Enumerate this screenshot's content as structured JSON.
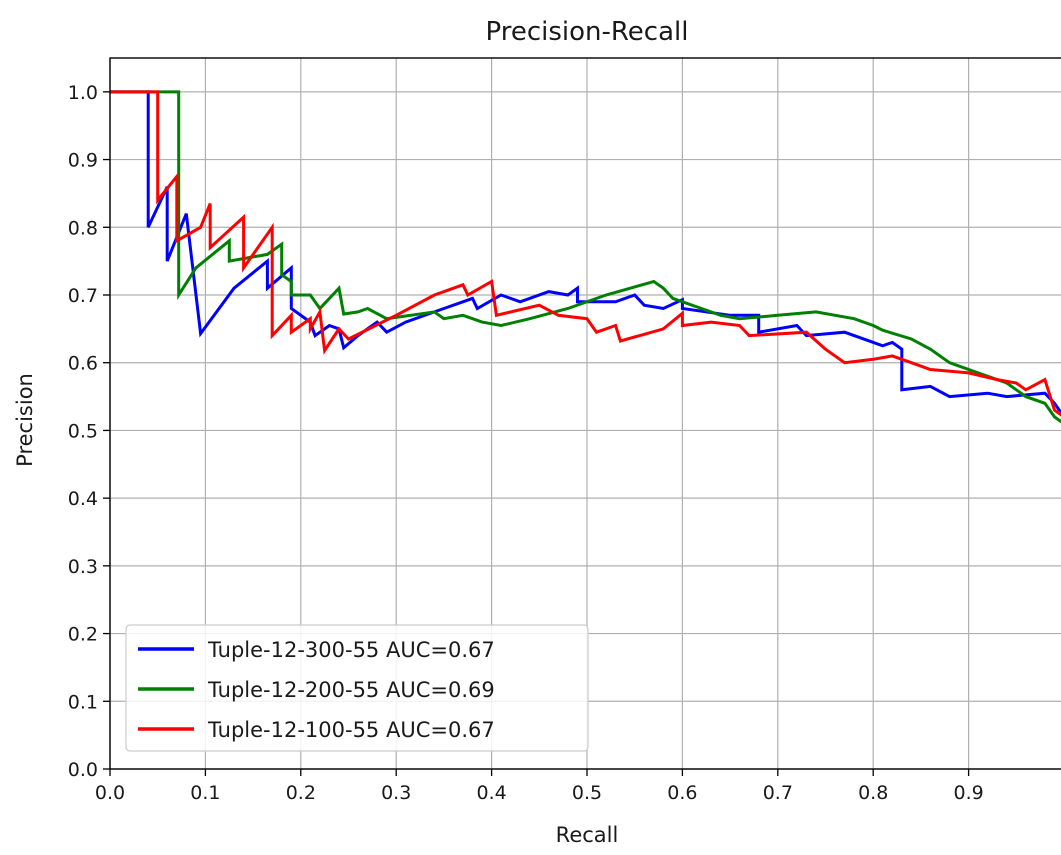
{
  "chart_data": {
    "type": "line",
    "title": "Precision-Recall",
    "xlabel": "Recall",
    "ylabel": "Precision",
    "xlim": [
      0.0,
      1.0
    ],
    "ylim": [
      0.0,
      1.05
    ],
    "grid": true,
    "legend_position": "lower-left",
    "x_ticks": [
      0.0,
      0.1,
      0.2,
      0.3,
      0.4,
      0.5,
      0.6,
      0.7,
      0.8,
      0.9
    ],
    "x_tick_labels": [
      "0.0",
      "0.1",
      "0.2",
      "0.3",
      "0.4",
      "0.5",
      "0.6",
      "0.7",
      "0.8",
      "0.9"
    ],
    "y_ticks": [
      0.0,
      0.1,
      0.2,
      0.3,
      0.4,
      0.5,
      0.6,
      0.7,
      0.8,
      0.9,
      1.0
    ],
    "y_tick_labels": [
      "0.0",
      "0.1",
      "0.2",
      "0.3",
      "0.4",
      "0.5",
      "0.6",
      "0.7",
      "0.8",
      "0.9",
      "1.0"
    ],
    "series": [
      {
        "name": "Tuple-12-300-55 AUC=0.67",
        "color": "#0000ff",
        "points": [
          [
            0.0,
            1.0
          ],
          [
            0.04,
            1.0
          ],
          [
            0.04,
            0.8
          ],
          [
            0.06,
            0.86
          ],
          [
            0.06,
            0.75
          ],
          [
            0.08,
            0.82
          ],
          [
            0.095,
            0.643
          ],
          [
            0.13,
            0.71
          ],
          [
            0.165,
            0.75
          ],
          [
            0.165,
            0.71
          ],
          [
            0.19,
            0.74
          ],
          [
            0.19,
            0.68
          ],
          [
            0.21,
            0.66
          ],
          [
            0.215,
            0.64
          ],
          [
            0.23,
            0.655
          ],
          [
            0.24,
            0.65
          ],
          [
            0.245,
            0.622
          ],
          [
            0.26,
            0.64
          ],
          [
            0.28,
            0.66
          ],
          [
            0.29,
            0.645
          ],
          [
            0.31,
            0.66
          ],
          [
            0.35,
            0.68
          ],
          [
            0.38,
            0.695
          ],
          [
            0.385,
            0.68
          ],
          [
            0.41,
            0.7
          ],
          [
            0.43,
            0.69
          ],
          [
            0.46,
            0.705
          ],
          [
            0.48,
            0.7
          ],
          [
            0.49,
            0.71
          ],
          [
            0.49,
            0.69
          ],
          [
            0.53,
            0.69
          ],
          [
            0.55,
            0.7
          ],
          [
            0.56,
            0.685
          ],
          [
            0.58,
            0.68
          ],
          [
            0.6,
            0.693
          ],
          [
            0.6,
            0.68
          ],
          [
            0.65,
            0.67
          ],
          [
            0.68,
            0.67
          ],
          [
            0.68,
            0.645
          ],
          [
            0.72,
            0.655
          ],
          [
            0.73,
            0.64
          ],
          [
            0.77,
            0.645
          ],
          [
            0.81,
            0.625
          ],
          [
            0.82,
            0.63
          ],
          [
            0.83,
            0.62
          ],
          [
            0.83,
            0.56
          ],
          [
            0.86,
            0.565
          ],
          [
            0.88,
            0.55
          ],
          [
            0.92,
            0.555
          ],
          [
            0.94,
            0.55
          ],
          [
            0.98,
            0.555
          ],
          [
            0.99,
            0.54
          ],
          [
            1.0,
            0.52
          ]
        ]
      },
      {
        "name": "Tuple-12-200-55 AUC=0.69",
        "color": "#008000",
        "points": [
          [
            0.0,
            1.0
          ],
          [
            0.072,
            1.0
          ],
          [
            0.072,
            0.7
          ],
          [
            0.09,
            0.74
          ],
          [
            0.125,
            0.78
          ],
          [
            0.125,
            0.75
          ],
          [
            0.165,
            0.76
          ],
          [
            0.18,
            0.775
          ],
          [
            0.18,
            0.73
          ],
          [
            0.19,
            0.72
          ],
          [
            0.19,
            0.7
          ],
          [
            0.21,
            0.7
          ],
          [
            0.22,
            0.68
          ],
          [
            0.24,
            0.71
          ],
          [
            0.245,
            0.672
          ],
          [
            0.26,
            0.675
          ],
          [
            0.27,
            0.68
          ],
          [
            0.29,
            0.665
          ],
          [
            0.34,
            0.675
          ],
          [
            0.35,
            0.665
          ],
          [
            0.37,
            0.67
          ],
          [
            0.39,
            0.66
          ],
          [
            0.41,
            0.655
          ],
          [
            0.44,
            0.665
          ],
          [
            0.48,
            0.68
          ],
          [
            0.52,
            0.7
          ],
          [
            0.57,
            0.72
          ],
          [
            0.58,
            0.71
          ],
          [
            0.59,
            0.695
          ],
          [
            0.62,
            0.68
          ],
          [
            0.64,
            0.67
          ],
          [
            0.66,
            0.665
          ],
          [
            0.7,
            0.67
          ],
          [
            0.74,
            0.675
          ],
          [
            0.78,
            0.665
          ],
          [
            0.8,
            0.655
          ],
          [
            0.81,
            0.648
          ],
          [
            0.84,
            0.635
          ],
          [
            0.86,
            0.62
          ],
          [
            0.88,
            0.6
          ],
          [
            0.92,
            0.58
          ],
          [
            0.94,
            0.57
          ],
          [
            0.96,
            0.55
          ],
          [
            0.98,
            0.54
          ],
          [
            0.99,
            0.52
          ],
          [
            1.0,
            0.51
          ]
        ]
      },
      {
        "name": "Tuple-12-100-55 AUC=0.67",
        "color": "#ff0000",
        "points": [
          [
            0.0,
            1.0
          ],
          [
            0.05,
            1.0
          ],
          [
            0.05,
            0.84
          ],
          [
            0.07,
            0.875
          ],
          [
            0.07,
            0.78
          ],
          [
            0.095,
            0.8
          ],
          [
            0.105,
            0.835
          ],
          [
            0.105,
            0.77
          ],
          [
            0.14,
            0.815
          ],
          [
            0.14,
            0.74
          ],
          [
            0.17,
            0.8
          ],
          [
            0.17,
            0.64
          ],
          [
            0.19,
            0.67
          ],
          [
            0.19,
            0.645
          ],
          [
            0.21,
            0.665
          ],
          [
            0.21,
            0.65
          ],
          [
            0.22,
            0.675
          ],
          [
            0.225,
            0.618
          ],
          [
            0.24,
            0.65
          ],
          [
            0.25,
            0.635
          ],
          [
            0.3,
            0.67
          ],
          [
            0.34,
            0.7
          ],
          [
            0.37,
            0.715
          ],
          [
            0.375,
            0.7
          ],
          [
            0.4,
            0.72
          ],
          [
            0.405,
            0.67
          ],
          [
            0.45,
            0.685
          ],
          [
            0.47,
            0.67
          ],
          [
            0.5,
            0.665
          ],
          [
            0.51,
            0.645
          ],
          [
            0.53,
            0.655
          ],
          [
            0.535,
            0.632
          ],
          [
            0.58,
            0.65
          ],
          [
            0.6,
            0.673
          ],
          [
            0.6,
            0.655
          ],
          [
            0.63,
            0.66
          ],
          [
            0.66,
            0.655
          ],
          [
            0.67,
            0.64
          ],
          [
            0.73,
            0.645
          ],
          [
            0.75,
            0.62
          ],
          [
            0.77,
            0.6
          ],
          [
            0.8,
            0.605
          ],
          [
            0.82,
            0.61
          ],
          [
            0.84,
            0.6
          ],
          [
            0.86,
            0.59
          ],
          [
            0.9,
            0.585
          ],
          [
            0.93,
            0.575
          ],
          [
            0.95,
            0.57
          ],
          [
            0.96,
            0.56
          ],
          [
            0.98,
            0.575
          ],
          [
            0.99,
            0.53
          ],
          [
            1.0,
            0.52
          ]
        ]
      }
    ]
  }
}
